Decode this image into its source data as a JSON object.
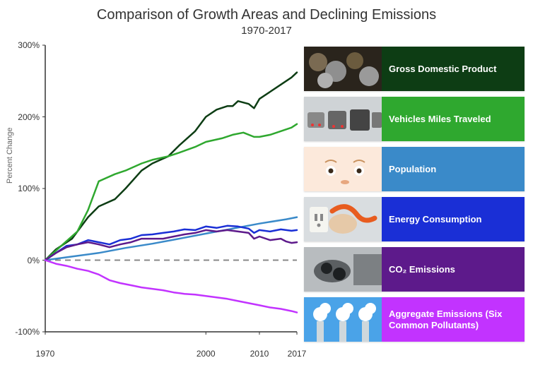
{
  "title": "Comparison of Growth Areas and Declining Emissions",
  "subtitle": "1970-2017",
  "ylabel": "Percent Change",
  "chart": {
    "type": "line",
    "x_range": [
      1970,
      2017
    ],
    "y_range": [
      -100,
      300
    ],
    "y_ticks": [
      -100,
      0,
      100,
      200,
      300
    ],
    "x_ticks": [
      1970,
      2000,
      2010,
      2017
    ],
    "background_color": "#ffffff",
    "axis_color": "#333333",
    "zero_line_color": "#888888",
    "zero_line_dash": "8,6",
    "line_width": 2.5,
    "series": [
      {
        "name": "Gross Domestic Product",
        "color": "#0d3d14",
        "data": [
          [
            1970,
            0
          ],
          [
            1972,
            15
          ],
          [
            1975,
            30
          ],
          [
            1978,
            60
          ],
          [
            1980,
            75
          ],
          [
            1983,
            85
          ],
          [
            1985,
            100
          ],
          [
            1988,
            125
          ],
          [
            1990,
            135
          ],
          [
            1993,
            145
          ],
          [
            1995,
            160
          ],
          [
            1998,
            180
          ],
          [
            2000,
            200
          ],
          [
            2002,
            210
          ],
          [
            2004,
            215
          ],
          [
            2005,
            215
          ],
          [
            2006,
            222
          ],
          [
            2008,
            218
          ],
          [
            2009,
            212
          ],
          [
            2010,
            225
          ],
          [
            2012,
            235
          ],
          [
            2014,
            245
          ],
          [
            2016,
            255
          ],
          [
            2017,
            262
          ]
        ]
      },
      {
        "name": "Vehicles Miles Traveled",
        "color": "#2fa82f",
        "data": [
          [
            1970,
            0
          ],
          [
            1973,
            20
          ],
          [
            1976,
            40
          ],
          [
            1978,
            70
          ],
          [
            1980,
            110
          ],
          [
            1983,
            120
          ],
          [
            1985,
            125
          ],
          [
            1988,
            135
          ],
          [
            1990,
            140
          ],
          [
            1993,
            145
          ],
          [
            1995,
            150
          ],
          [
            1998,
            158
          ],
          [
            2000,
            165
          ],
          [
            2003,
            170
          ],
          [
            2005,
            175
          ],
          [
            2007,
            178
          ],
          [
            2009,
            172
          ],
          [
            2010,
            172
          ],
          [
            2012,
            175
          ],
          [
            2014,
            180
          ],
          [
            2016,
            185
          ],
          [
            2017,
            190
          ]
        ]
      },
      {
        "name": "Population",
        "color": "#3a8ac9",
        "data": [
          [
            1970,
            0
          ],
          [
            1975,
            5
          ],
          [
            1980,
            10
          ],
          [
            1985,
            17
          ],
          [
            1990,
            23
          ],
          [
            1995,
            30
          ],
          [
            2000,
            37
          ],
          [
            2005,
            44
          ],
          [
            2010,
            51
          ],
          [
            2015,
            57
          ],
          [
            2017,
            60
          ]
        ]
      },
      {
        "name": "Energy Consumption",
        "color": "#1a2fd6",
        "data": [
          [
            1970,
            0
          ],
          [
            1972,
            10
          ],
          [
            1974,
            20
          ],
          [
            1976,
            22
          ],
          [
            1978,
            28
          ],
          [
            1980,
            25
          ],
          [
            1982,
            22
          ],
          [
            1984,
            28
          ],
          [
            1986,
            30
          ],
          [
            1988,
            35
          ],
          [
            1990,
            36
          ],
          [
            1992,
            38
          ],
          [
            1994,
            40
          ],
          [
            1996,
            43
          ],
          [
            1998,
            42
          ],
          [
            2000,
            47
          ],
          [
            2002,
            45
          ],
          [
            2004,
            48
          ],
          [
            2006,
            47
          ],
          [
            2008,
            44
          ],
          [
            2009,
            38
          ],
          [
            2010,
            42
          ],
          [
            2012,
            40
          ],
          [
            2014,
            43
          ],
          [
            2016,
            41
          ],
          [
            2017,
            42
          ]
        ]
      },
      {
        "name": "CO2 Emissions",
        "color": "#5d1a8b",
        "data": [
          [
            1970,
            0
          ],
          [
            1972,
            10
          ],
          [
            1974,
            18
          ],
          [
            1976,
            22
          ],
          [
            1978,
            25
          ],
          [
            1980,
            22
          ],
          [
            1982,
            18
          ],
          [
            1984,
            22
          ],
          [
            1986,
            25
          ],
          [
            1988,
            30
          ],
          [
            1990,
            30
          ],
          [
            1992,
            30
          ],
          [
            1994,
            33
          ],
          [
            1996,
            36
          ],
          [
            1998,
            38
          ],
          [
            2000,
            42
          ],
          [
            2002,
            40
          ],
          [
            2004,
            42
          ],
          [
            2006,
            40
          ],
          [
            2008,
            38
          ],
          [
            2009,
            30
          ],
          [
            2010,
            33
          ],
          [
            2012,
            28
          ],
          [
            2014,
            30
          ],
          [
            2015,
            26
          ],
          [
            2016,
            24
          ],
          [
            2017,
            25
          ]
        ]
      },
      {
        "name": "Aggregate Emissions",
        "color": "#c233ff",
        "data": [
          [
            1970,
            0
          ],
          [
            1972,
            -5
          ],
          [
            1974,
            -8
          ],
          [
            1976,
            -12
          ],
          [
            1978,
            -15
          ],
          [
            1980,
            -20
          ],
          [
            1982,
            -28
          ],
          [
            1984,
            -32
          ],
          [
            1986,
            -35
          ],
          [
            1988,
            -38
          ],
          [
            1990,
            -40
          ],
          [
            1992,
            -42
          ],
          [
            1994,
            -45
          ],
          [
            1996,
            -47
          ],
          [
            1998,
            -48
          ],
          [
            2000,
            -50
          ],
          [
            2002,
            -52
          ],
          [
            2004,
            -54
          ],
          [
            2006,
            -57
          ],
          [
            2008,
            -60
          ],
          [
            2010,
            -63
          ],
          [
            2012,
            -66
          ],
          [
            2014,
            -68
          ],
          [
            2016,
            -71
          ],
          [
            2017,
            -73
          ]
        ]
      }
    ]
  },
  "legend": [
    {
      "label": "Gross Domestic Product",
      "bg": "#0d3d14",
      "thumb": "coins"
    },
    {
      "label": "Vehicles Miles Traveled",
      "bg": "#2fa82f",
      "thumb": "traffic"
    },
    {
      "label": "Population",
      "bg": "#3a8ac9",
      "thumb": "baby"
    },
    {
      "label": "Energy Consumption",
      "bg": "#1a2fd6",
      "thumb": "plug"
    },
    {
      "label": "CO₂ Emissions",
      "bg": "#5d1a8b",
      "thumb": "exhaust"
    },
    {
      "label": "Aggregate Emissions (Six Common Pollutants)",
      "bg": "#c233ff",
      "thumb": "smokestack"
    }
  ]
}
